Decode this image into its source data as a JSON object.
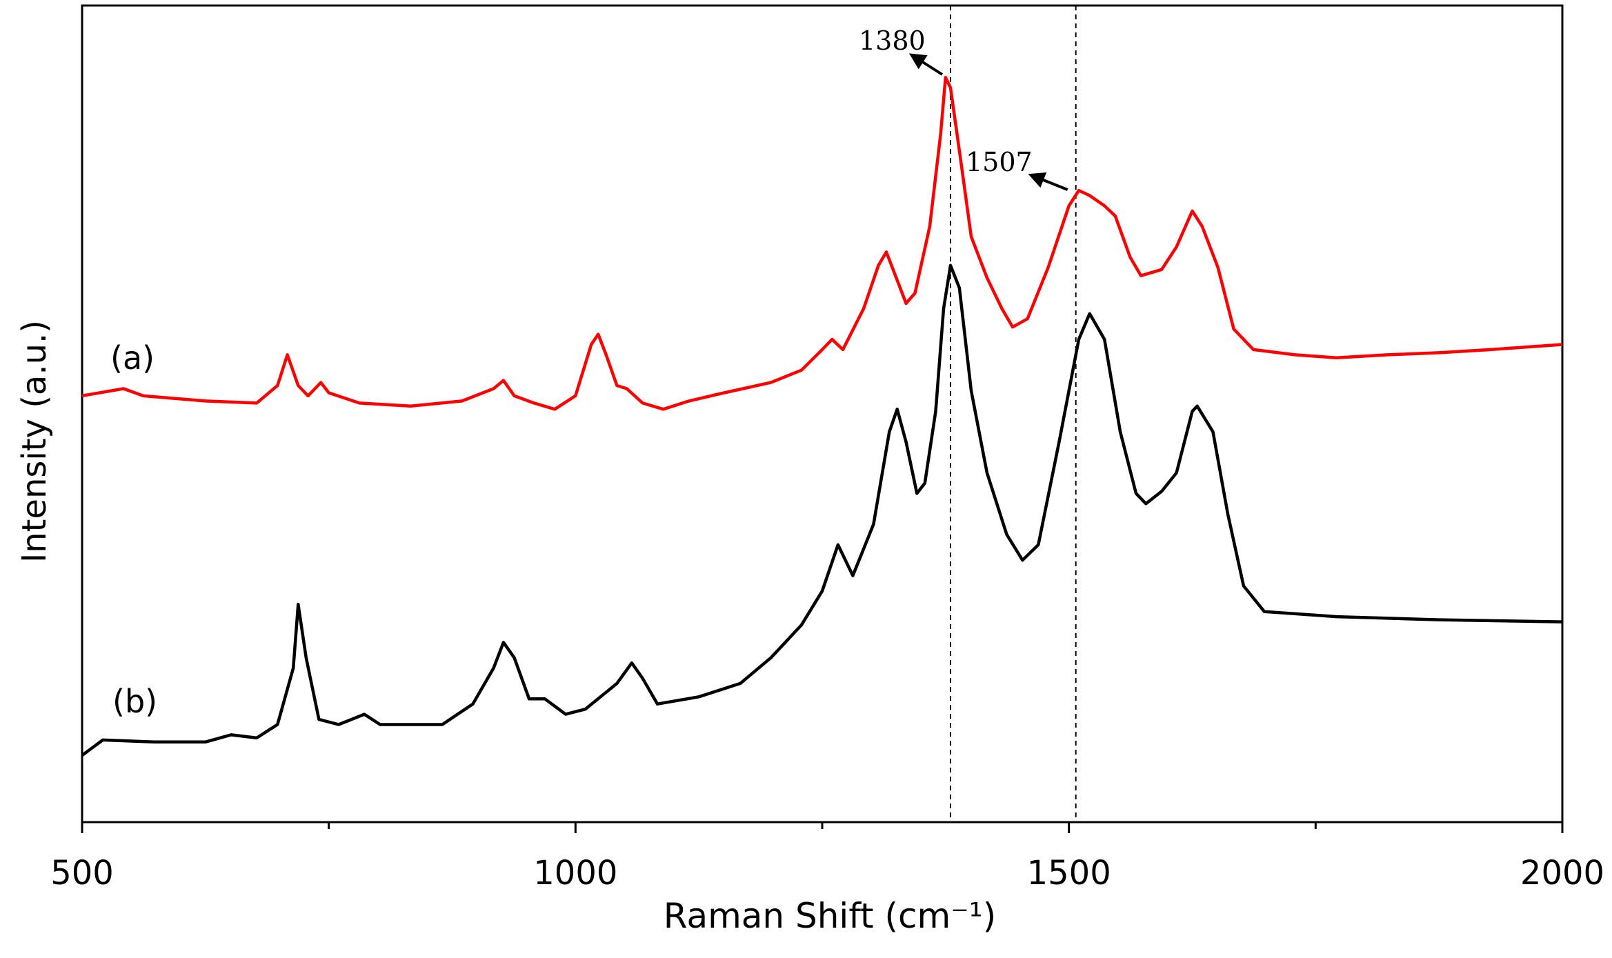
{
  "chart_data": {
    "type": "line",
    "xlabel": "Raman Shift (cm⁻¹)",
    "ylabel": "Intensity (a.u.)",
    "xlim": [
      500,
      2000
    ],
    "xticks": [
      500,
      1000,
      1500,
      2000
    ],
    "xminor": [
      750,
      1250,
      1750
    ],
    "ylim": [
      0,
      795
    ],
    "annotations": [
      1380,
      1507
    ],
    "series": [
      {
        "name": "(a)",
        "color": "#ff0000",
        "x": [
          500,
          542,
          562,
          625,
          677,
          698,
          708,
          719,
          729,
          742,
          750,
          781,
          833,
          885,
          917,
          927,
          938,
          958,
          979,
          1000,
          1016,
          1023,
          1031,
          1042,
          1052,
          1068,
          1089,
          1115,
          1146,
          1198,
          1229,
          1250,
          1260,
          1271,
          1292,
          1307,
          1315,
          1325,
          1335,
          1344,
          1359,
          1370,
          1375,
          1380,
          1391,
          1401,
          1417,
          1432,
          1443,
          1458,
          1479,
          1500,
          1510,
          1521,
          1536,
          1547,
          1562,
          1573,
          1594,
          1609,
          1625,
          1635,
          1651,
          1667,
          1687,
          1729,
          1771,
          1823,
          1875,
          1927,
          2000
        ],
        "values": [
          415,
          422,
          415,
          410,
          408,
          425,
          455,
          425,
          415,
          428,
          418,
          408,
          405,
          410,
          422,
          430,
          415,
          408,
          402,
          415,
          465,
          475,
          455,
          425,
          422,
          408,
          402,
          410,
          417,
          428,
          440,
          460,
          470,
          460,
          500,
          542,
          555,
          530,
          505,
          515,
          580,
          670,
          725,
          715,
          640,
          570,
          530,
          500,
          482,
          490,
          540,
          600,
          615,
          610,
          600,
          590,
          550,
          532,
          538,
          560,
          595,
          580,
          540,
          480,
          460,
          455,
          452,
          455,
          457,
          460,
          465
        ]
      },
      {
        "name": "(b)",
        "color": "#000000",
        "x": [
          500,
          521,
          573,
          625,
          651,
          677,
          698,
          714,
          719,
          727,
          740,
          760,
          786,
          802,
          865,
          896,
          917,
          927,
          938,
          953,
          969,
          990,
          1010,
          1042,
          1057,
          1068,
          1083,
          1125,
          1167,
          1198,
          1229,
          1250,
          1266,
          1281,
          1302,
          1318,
          1326,
          1335,
          1346,
          1354,
          1365,
          1373,
          1380,
          1389,
          1401,
          1417,
          1437,
          1453,
          1469,
          1490,
          1510,
          1521,
          1536,
          1552,
          1568,
          1578,
          1594,
          1609,
          1625,
          1630,
          1646,
          1661,
          1677,
          1698,
          1771,
          1875,
          2000
        ],
        "values": [
          65,
          80,
          78,
          78,
          85,
          82,
          95,
          150,
          212,
          160,
          100,
          95,
          105,
          95,
          95,
          115,
          150,
          175,
          160,
          120,
          120,
          105,
          110,
          135,
          155,
          140,
          115,
          122,
          135,
          160,
          192,
          225,
          270,
          240,
          290,
          380,
          402,
          370,
          320,
          330,
          400,
          500,
          542,
          520,
          420,
          340,
          280,
          255,
          270,
          370,
          470,
          495,
          470,
          380,
          320,
          310,
          322,
          340,
          400,
          405,
          380,
          300,
          230,
          205,
          200,
          197,
          195
        ]
      }
    ]
  }
}
